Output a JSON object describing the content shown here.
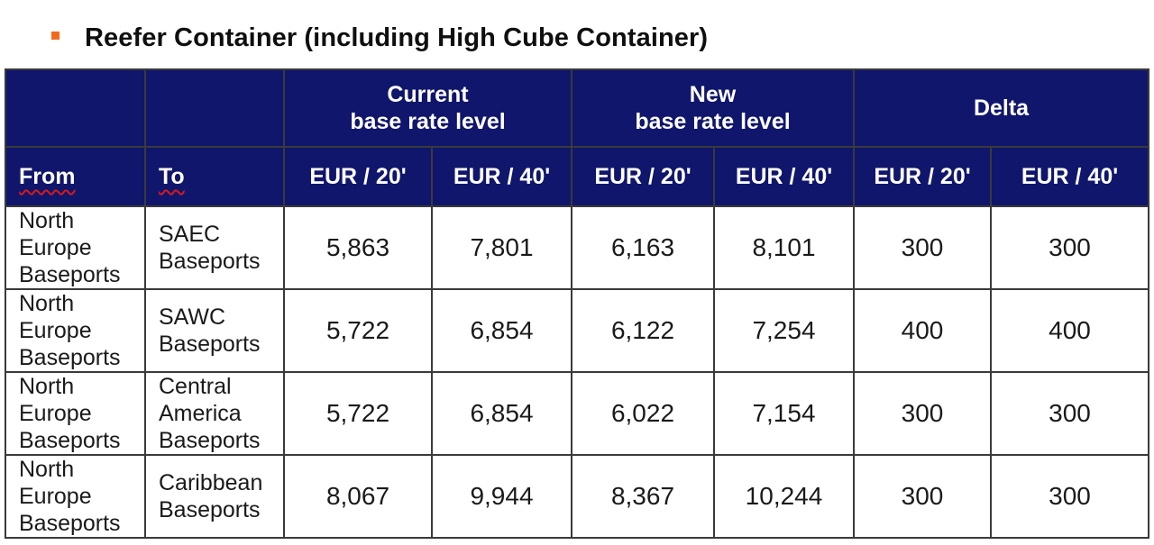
{
  "heading": {
    "title": "Reefer Container (including High Cube Container)",
    "bullet_color": "#f26b1d"
  },
  "colors": {
    "header_bg": "#10166b",
    "header_text": "#ffffff",
    "border": "#3a3a3a"
  },
  "table": {
    "groups": {
      "current_line1": "Current",
      "current_line2": "base rate level",
      "new_line1": "New",
      "new_line2": "base rate level",
      "delta": "Delta"
    },
    "columns": {
      "from": "From",
      "to": "To",
      "cur20": "EUR / 20'",
      "cur40": "EUR / 40'",
      "new20": "EUR / 20'",
      "new40": "EUR / 40'",
      "delta20": "EUR / 20'",
      "delta40": "EUR / 40'"
    },
    "rows": [
      {
        "from": [
          "North",
          "Europe",
          "Baseports"
        ],
        "to": [
          "SAEC",
          "Baseports"
        ],
        "cur20": "5,863",
        "cur40": "7,801",
        "new20": "6,163",
        "new40": "8,101",
        "delta20": "300",
        "delta40": "300"
      },
      {
        "from": [
          "North",
          "Europe",
          "Baseports"
        ],
        "to": [
          "SAWC",
          "Baseports"
        ],
        "cur20": "5,722",
        "cur40": "6,854",
        "new20": "6,122",
        "new40": "7,254",
        "delta20": "400",
        "delta40": "400"
      },
      {
        "from": [
          "North",
          "Europe",
          "Baseports"
        ],
        "to": [
          "Central",
          "America",
          "Baseports"
        ],
        "cur20": "5,722",
        "cur40": "6,854",
        "new20": "6,022",
        "new40": "7,154",
        "delta20": "300",
        "delta40": "300"
      },
      {
        "from": [
          "North",
          "Europe",
          "Baseports"
        ],
        "to": [
          "Caribbean",
          "Baseports"
        ],
        "cur20": "8,067",
        "cur40": "9,944",
        "new20": "8,367",
        "new40": "10,244",
        "delta20": "300",
        "delta40": "300"
      }
    ]
  }
}
